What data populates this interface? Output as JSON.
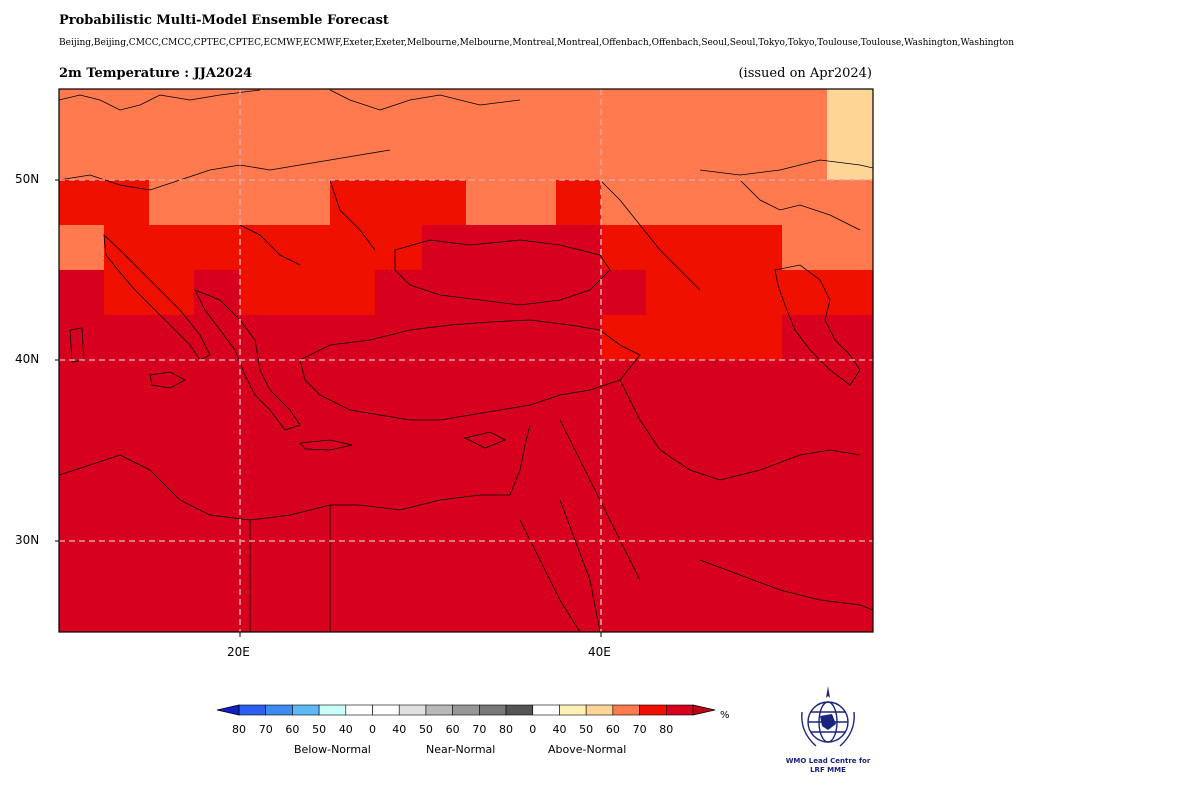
{
  "title": "Probabilistic Multi-Model Ensemble Forecast",
  "models": "Beijing,Beijing,CMCC,CMCC,CPTEC,CPTEC,ECMWF,ECMWF,Exeter,Exeter,Melbourne,Melbourne,Montreal,Montreal,Offenbach,Offenbach,Seoul,Seoul,Tokyo,Tokyo,Toulouse,Toulouse,Washington,Washington",
  "subtitle": "2m Temperature : JJA2024",
  "issued": "(issued on Apr2024)",
  "map": {
    "lat_labels": [
      "50N",
      "40N",
      "30N"
    ],
    "lon_labels": [
      "20E",
      "40E"
    ],
    "colors": {
      "above80": "#d7001e",
      "above70": "#f01000",
      "above60": "#ff7b4f",
      "above50": "#ffd595",
      "grid": "#e9a0a0"
    }
  },
  "legend": {
    "unit": "%",
    "labels": [
      "80",
      "70",
      "60",
      "50",
      "40",
      "0",
      "40",
      "50",
      "60",
      "70",
      "80",
      "0",
      "40",
      "50",
      "60",
      "70",
      "80"
    ],
    "categories": [
      "Below-Normal",
      "Near-Normal",
      "Above-Normal"
    ],
    "colors": [
      "#2a5ff0",
      "#3d8bf0",
      "#5db8f5",
      "#c8fff8",
      "#ffffff",
      "#ffffff",
      "#e0e0e0",
      "#b8b8b8",
      "#969696",
      "#787878",
      "#555555",
      "#ffffff",
      "#fff2b4",
      "#ffd595",
      "#ff7b4f",
      "#f01000",
      "#d7001e"
    ],
    "left_tip_color": "#1020c8",
    "right_tip_color": "#c0001a"
  },
  "logo": {
    "text_line1": "WMO Lead Centre for",
    "text_line2": "LRF MME",
    "icon": "wmo-globe-icon"
  }
}
